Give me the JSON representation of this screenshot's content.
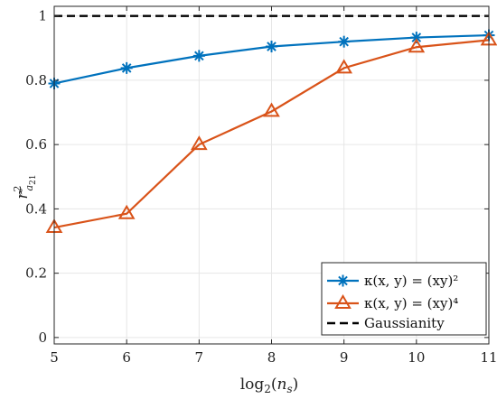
{
  "chart_data": {
    "type": "line",
    "xlabel": "log₂(nₛ)",
    "ylabel": "r² ã₂₁",
    "xlim": [
      5,
      11
    ],
    "ylim": [
      -0.02,
      1.03
    ],
    "xticks": [
      5,
      6,
      7,
      8,
      9,
      10,
      11
    ],
    "yticks": [
      0,
      0.2,
      0.4,
      0.6,
      0.8,
      1
    ],
    "ytick_labels": [
      "0",
      "0.2",
      "0.4",
      "0.6",
      "0.8",
      "1"
    ],
    "grid": true,
    "legend_position": "bottom-right",
    "x": [
      5,
      6,
      7,
      8,
      9,
      10,
      11
    ],
    "series": [
      {
        "name": "κ(x, y) = (xy)²",
        "values": [
          0.79,
          0.838,
          0.876,
          0.905,
          0.92,
          0.933,
          0.94
        ],
        "color": "#0072BD",
        "marker": "asterisk"
      },
      {
        "name": "κ(x, y) = (xy)⁴",
        "values": [
          0.342,
          0.385,
          0.6,
          0.703,
          0.838,
          0.903,
          0.925
        ],
        "color": "#D95319",
        "marker": "triangle"
      }
    ],
    "reference_line": {
      "name": "Gaussianity",
      "value": 1,
      "color": "#000000",
      "style": "dashed"
    }
  }
}
